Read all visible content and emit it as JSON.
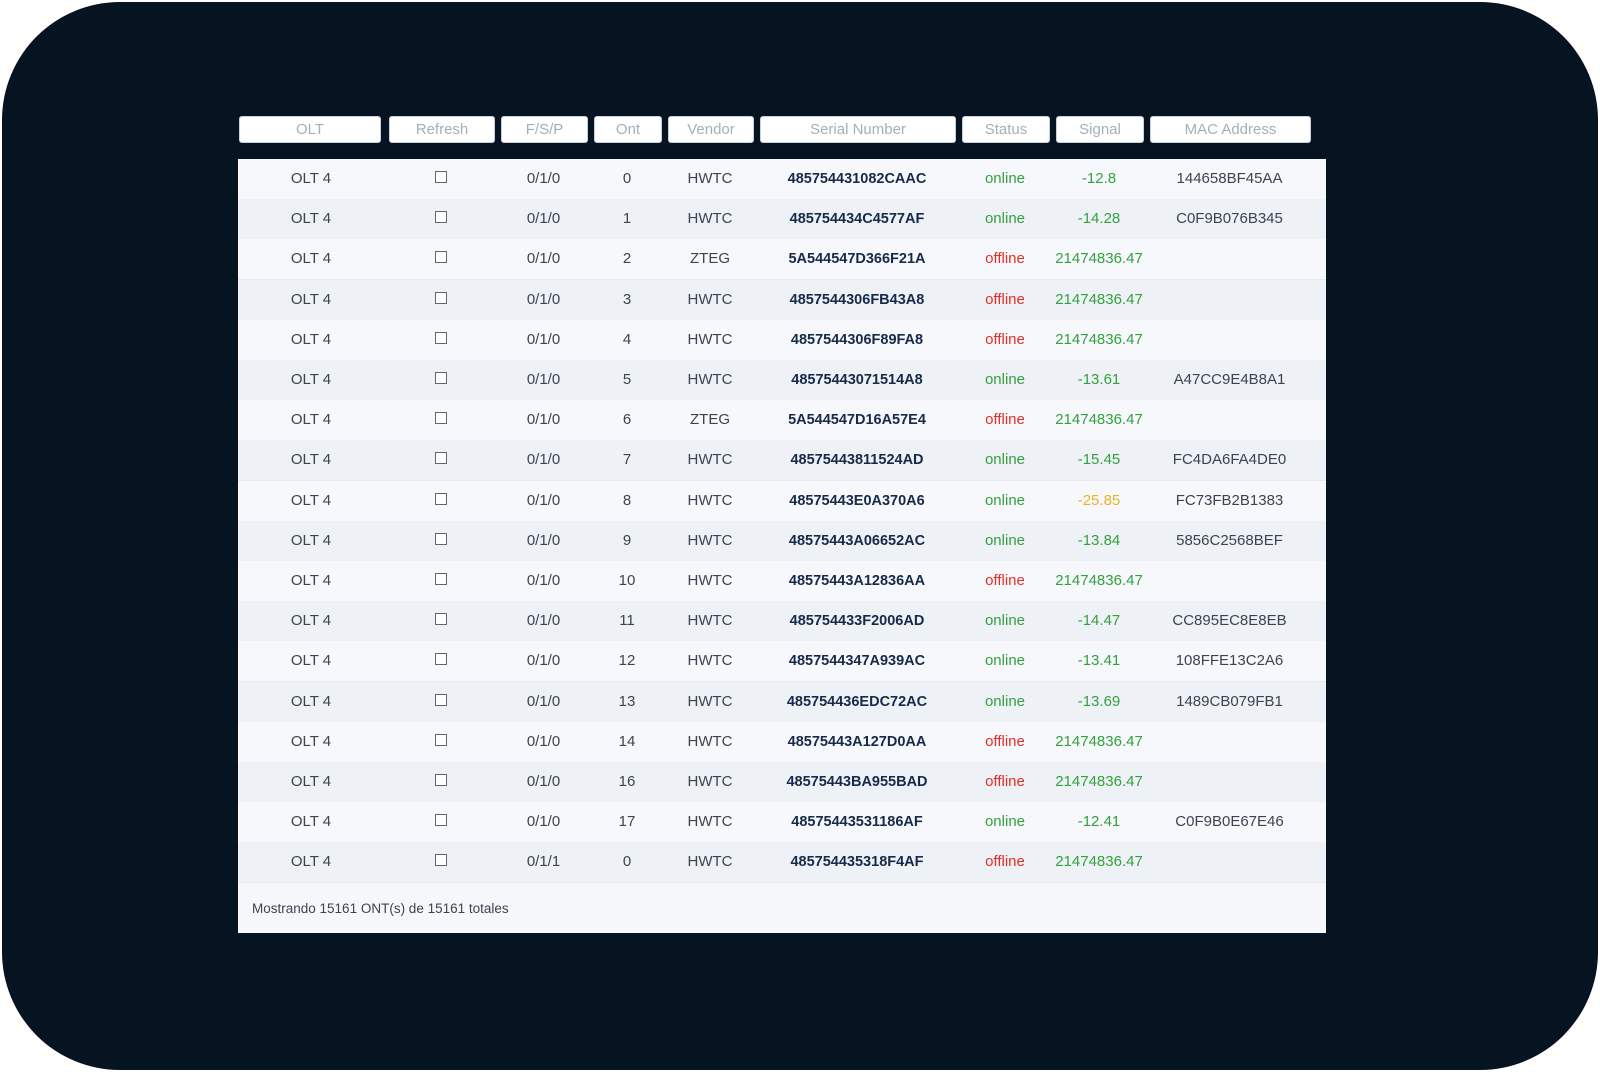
{
  "filters": [
    {
      "key": "olt",
      "placeholder": "OLT"
    },
    {
      "key": "refresh",
      "placeholder": "Refresh"
    },
    {
      "key": "fsp",
      "placeholder": "F/S/P"
    },
    {
      "key": "ont",
      "placeholder": "Ont"
    },
    {
      "key": "vendor",
      "placeholder": "Vendor"
    },
    {
      "key": "serial",
      "placeholder": "Serial Number"
    },
    {
      "key": "status",
      "placeholder": "Status"
    },
    {
      "key": "signal",
      "placeholder": "Signal"
    },
    {
      "key": "mac",
      "placeholder": "MAC Address"
    }
  ],
  "colors": {
    "frame_background": "#061422",
    "status_online": "#35a03f",
    "status_offline": "#e0302a",
    "signal_warning": "#e7b52a",
    "serial_text": "#172a4a"
  },
  "rows": [
    {
      "olt": "OLT 4",
      "refresh": false,
      "fsp": "0/1/0",
      "ont": "0",
      "vendor": "HWTC",
      "serial": "485754431082CAAC",
      "status": "online",
      "signal": "-12.8",
      "signal_level": "good",
      "mac": "144658BF45AA"
    },
    {
      "olt": "OLT 4",
      "refresh": false,
      "fsp": "0/1/0",
      "ont": "1",
      "vendor": "HWTC",
      "serial": "485754434C4577AF",
      "status": "online",
      "signal": "-14.28",
      "signal_level": "good",
      "mac": "C0F9B076B345"
    },
    {
      "olt": "OLT 4",
      "refresh": false,
      "fsp": "0/1/0",
      "ont": "2",
      "vendor": "ZTEG",
      "serial": "5A544547D366F21A",
      "status": "offline",
      "signal": "21474836.47",
      "signal_level": "off",
      "mac": ""
    },
    {
      "olt": "OLT 4",
      "refresh": false,
      "fsp": "0/1/0",
      "ont": "3",
      "vendor": "HWTC",
      "serial": "4857544306FB43A8",
      "status": "offline",
      "signal": "21474836.47",
      "signal_level": "off",
      "mac": ""
    },
    {
      "olt": "OLT 4",
      "refresh": false,
      "fsp": "0/1/0",
      "ont": "4",
      "vendor": "HWTC",
      "serial": "4857544306F89FA8",
      "status": "offline",
      "signal": "21474836.47",
      "signal_level": "off",
      "mac": ""
    },
    {
      "olt": "OLT 4",
      "refresh": false,
      "fsp": "0/1/0",
      "ont": "5",
      "vendor": "HWTC",
      "serial": "48575443071514A8",
      "status": "online",
      "signal": "-13.61",
      "signal_level": "good",
      "mac": "A47CC9E4B8A1"
    },
    {
      "olt": "OLT 4",
      "refresh": false,
      "fsp": "0/1/0",
      "ont": "6",
      "vendor": "ZTEG",
      "serial": "5A544547D16A57E4",
      "status": "offline",
      "signal": "21474836.47",
      "signal_level": "off",
      "mac": ""
    },
    {
      "olt": "OLT 4",
      "refresh": false,
      "fsp": "0/1/0",
      "ont": "7",
      "vendor": "HWTC",
      "serial": "48575443811524AD",
      "status": "online",
      "signal": "-15.45",
      "signal_level": "good",
      "mac": "FC4DA6FA4DE0"
    },
    {
      "olt": "OLT 4",
      "refresh": false,
      "fsp": "0/1/0",
      "ont": "8",
      "vendor": "HWTC",
      "serial": "48575443E0A370A6",
      "status": "online",
      "signal": "-25.85",
      "signal_level": "warn",
      "mac": "FC73FB2B1383"
    },
    {
      "olt": "OLT 4",
      "refresh": false,
      "fsp": "0/1/0",
      "ont": "9",
      "vendor": "HWTC",
      "serial": "48575443A06652AC",
      "status": "online",
      "signal": "-13.84",
      "signal_level": "good",
      "mac": "5856C2568BEF"
    },
    {
      "olt": "OLT 4",
      "refresh": false,
      "fsp": "0/1/0",
      "ont": "10",
      "vendor": "HWTC",
      "serial": "48575443A12836AA",
      "status": "offline",
      "signal": "21474836.47",
      "signal_level": "off",
      "mac": ""
    },
    {
      "olt": "OLT 4",
      "refresh": false,
      "fsp": "0/1/0",
      "ont": "11",
      "vendor": "HWTC",
      "serial": "485754433F2006AD",
      "status": "online",
      "signal": "-14.47",
      "signal_level": "good",
      "mac": "CC895EC8E8EB"
    },
    {
      "olt": "OLT 4",
      "refresh": false,
      "fsp": "0/1/0",
      "ont": "12",
      "vendor": "HWTC",
      "serial": "4857544347A939AC",
      "status": "online",
      "signal": "-13.41",
      "signal_level": "good",
      "mac": "108FFE13C2A6"
    },
    {
      "olt": "OLT 4",
      "refresh": false,
      "fsp": "0/1/0",
      "ont": "13",
      "vendor": "HWTC",
      "serial": "485754436EDC72AC",
      "status": "online",
      "signal": "-13.69",
      "signal_level": "good",
      "mac": "1489CB079FB1"
    },
    {
      "olt": "OLT 4",
      "refresh": false,
      "fsp": "0/1/0",
      "ont": "14",
      "vendor": "HWTC",
      "serial": "48575443A127D0AA",
      "status": "offline",
      "signal": "21474836.47",
      "signal_level": "off",
      "mac": ""
    },
    {
      "olt": "OLT 4",
      "refresh": false,
      "fsp": "0/1/0",
      "ont": "16",
      "vendor": "HWTC",
      "serial": "48575443BA955BAD",
      "status": "offline",
      "signal": "21474836.47",
      "signal_level": "off",
      "mac": ""
    },
    {
      "olt": "OLT 4",
      "refresh": false,
      "fsp": "0/1/0",
      "ont": "17",
      "vendor": "HWTC",
      "serial": "48575443531186AF",
      "status": "online",
      "signal": "-12.41",
      "signal_level": "good",
      "mac": "C0F9B0E67E46"
    },
    {
      "olt": "OLT 4",
      "refresh": false,
      "fsp": "0/1/1",
      "ont": "0",
      "vendor": "HWTC",
      "serial": "485754435318F4AF",
      "status": "offline",
      "signal": "21474836.47",
      "signal_level": "off",
      "mac": ""
    }
  ],
  "footer": {
    "summary": "Mostrando 15161 ONT(s) de 15161 totales"
  }
}
